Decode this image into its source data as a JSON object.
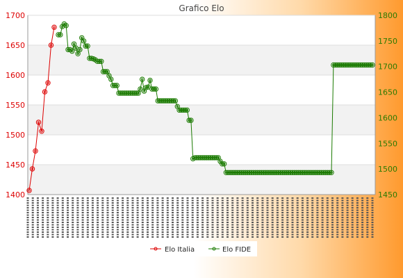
{
  "chart_data": {
    "type": "line",
    "title": "Grafico Elo",
    "y_left": {
      "min": 1400,
      "max": 1700,
      "ticks": [
        1400,
        1450,
        1500,
        1550,
        1600,
        1650,
        1700
      ],
      "color": "#dd0000"
    },
    "y_right": {
      "min": 1450,
      "max": 1800,
      "ticks": [
        1450,
        1500,
        1550,
        1600,
        1650,
        1700,
        1750,
        1800
      ],
      "color": "#2a7a00"
    },
    "grid": true,
    "legend_position": "bottom",
    "x_tick_labels": "unreadable rotated dates",
    "series": [
      {
        "name": "Elo Italia",
        "axis": "left",
        "color": "#dd0000",
        "values": [
          1407,
          1443,
          1473,
          1521,
          1506,
          1572,
          1587,
          1650,
          1680
        ]
      },
      {
        "name": "Elo FIDE",
        "axis": "right",
        "color": "#1a7a00",
        "values": [
          1762,
          1762,
          1778,
          1783,
          1780,
          1733,
          1733,
          1730,
          1744,
          1736,
          1725,
          1733,
          1756,
          1750,
          1740,
          1740,
          1716,
          1716,
          1715,
          1713,
          1710,
          1710,
          1710,
          1690,
          1690,
          1690,
          1682,
          1675,
          1663,
          1663,
          1663,
          1648,
          1648,
          1648,
          1648,
          1648,
          1648,
          1648,
          1648,
          1648,
          1648,
          1648,
          1656,
          1675,
          1652,
          1659,
          1660,
          1673,
          1656,
          1656,
          1656,
          1633,
          1633,
          1633,
          1633,
          1633,
          1633,
          1633,
          1633,
          1633,
          1633,
          1622,
          1615,
          1615,
          1615,
          1615,
          1615,
          1595,
          1595,
          1520,
          1522,
          1522,
          1522,
          1522,
          1522,
          1522,
          1522,
          1522,
          1522,
          1522,
          1522,
          1522,
          1522,
          1515,
          1510,
          1510,
          1493,
          1493,
          1493,
          1493,
          1493,
          1493,
          1493,
          1493,
          1493,
          1493,
          1493,
          1493,
          1493,
          1493,
          1493,
          1493,
          1493,
          1493,
          1493,
          1493,
          1493,
          1493,
          1493,
          1493,
          1493,
          1493,
          1493,
          1493,
          1493,
          1493,
          1493,
          1493,
          1493,
          1493,
          1493,
          1493,
          1493,
          1493,
          1493,
          1493,
          1493,
          1493,
          1493,
          1493,
          1493,
          1493,
          1493,
          1493,
          1493,
          1493,
          1493,
          1493,
          1493,
          1493,
          1493,
          1703,
          1703,
          1703,
          1703,
          1703,
          1703,
          1703,
          1703,
          1703,
          1703,
          1703,
          1703,
          1703,
          1703,
          1703,
          1703,
          1703,
          1703,
          1703,
          1703,
          1703
        ]
      }
    ]
  }
}
